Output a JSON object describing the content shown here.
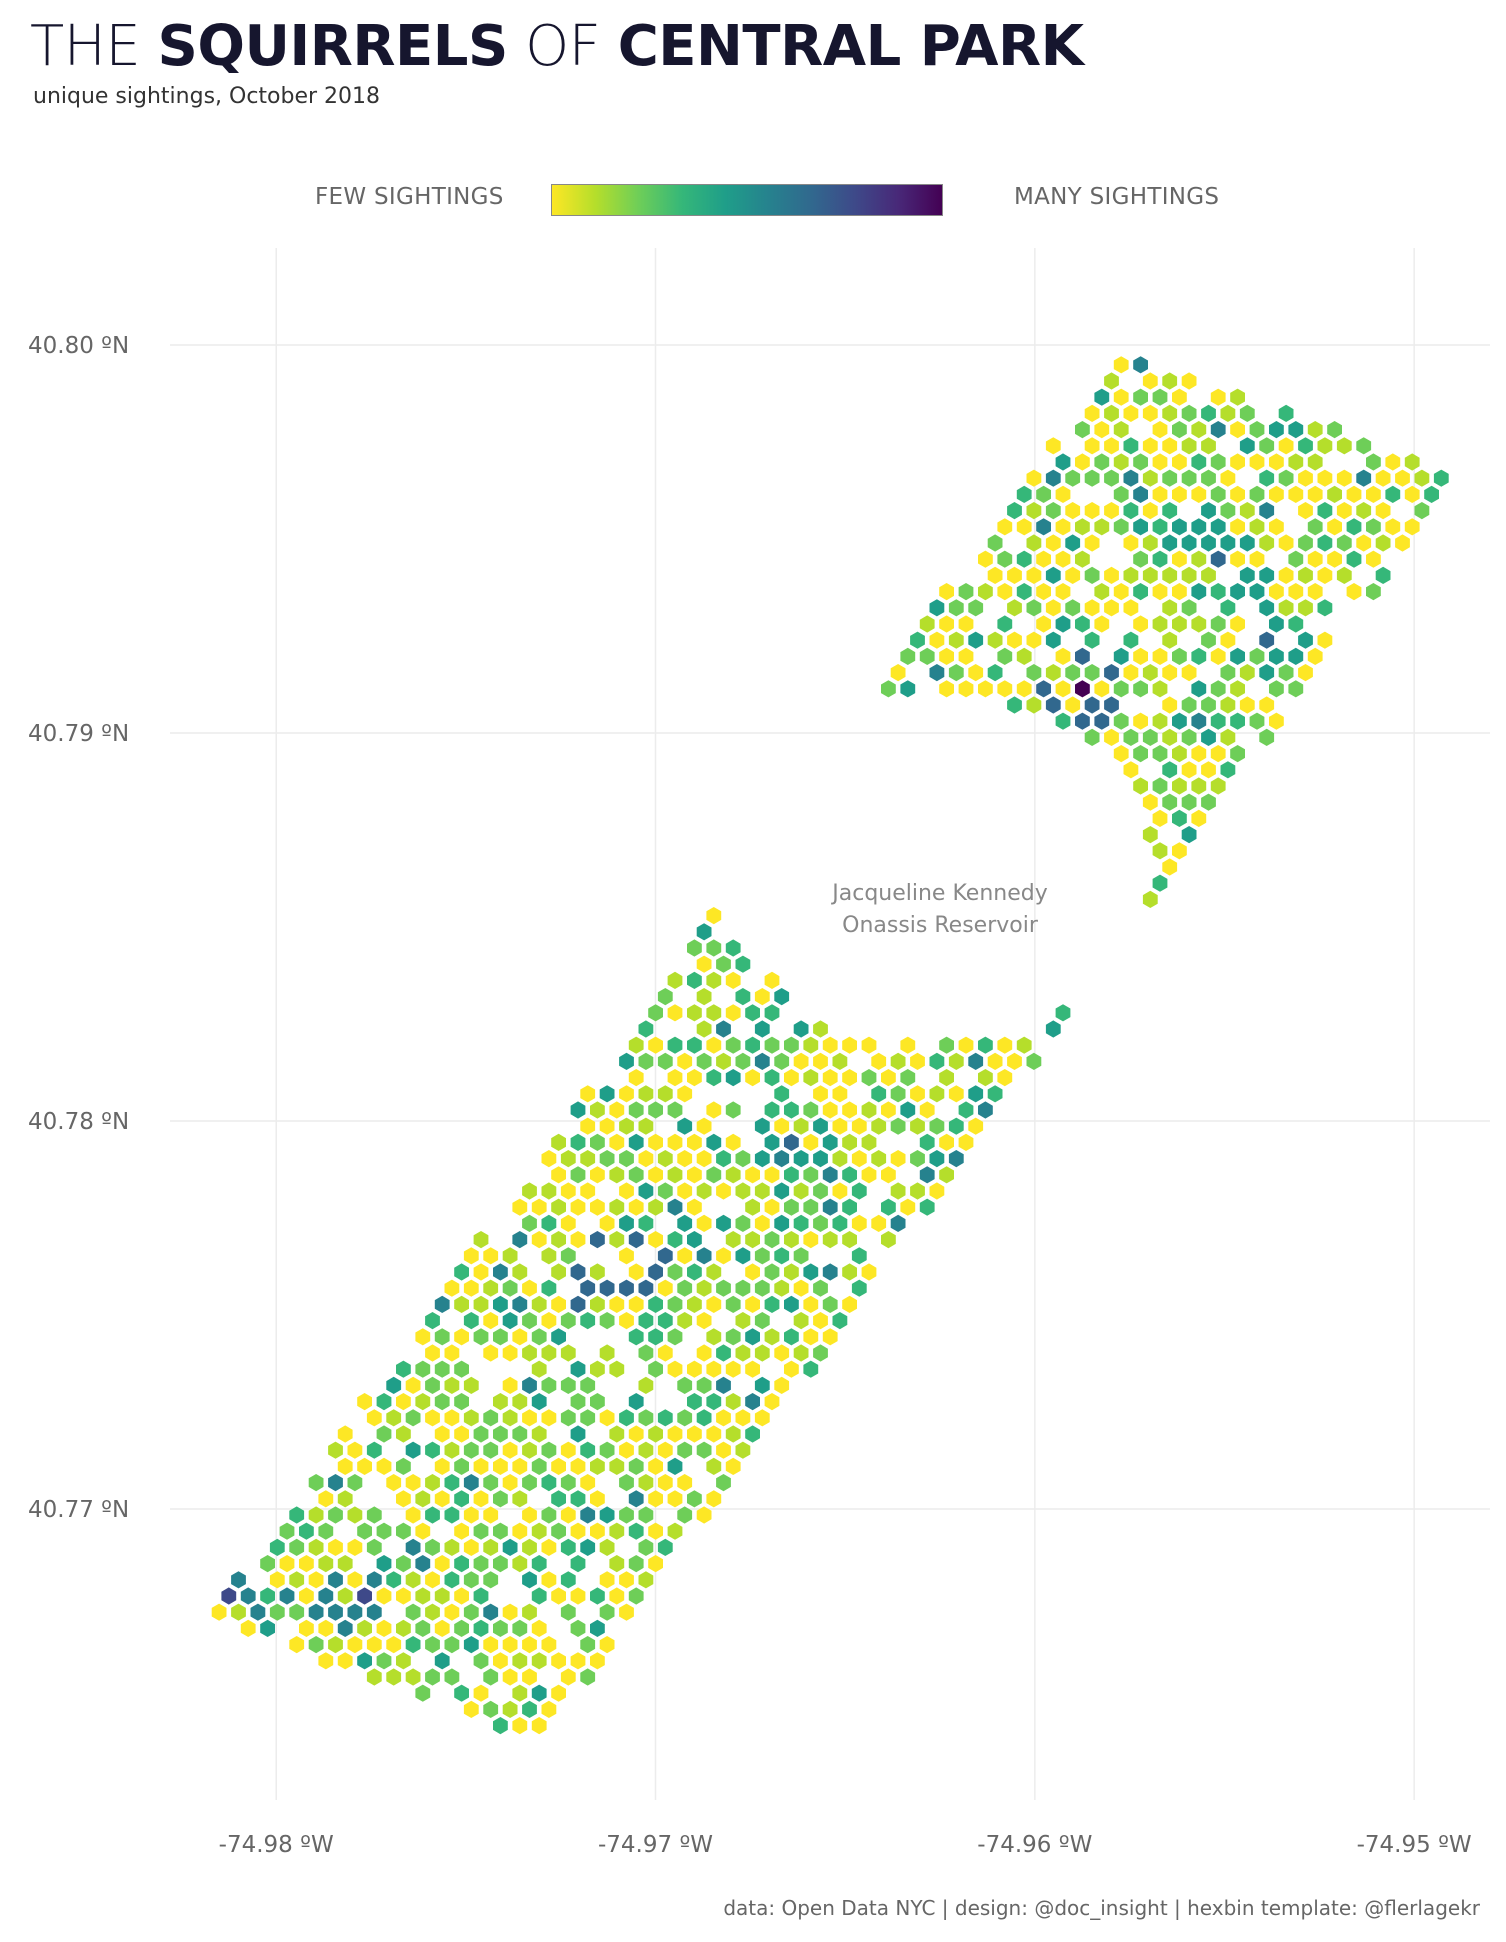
{
  "title": {
    "prefix": "THE",
    "word1": "SQUIRRELS",
    "middle": "OF",
    "word2": "CENTRAL PARK"
  },
  "subtitle": "unique sightings, October 2018",
  "legend": {
    "low_label": "FEW SIGHTINGS",
    "high_label": "MANY SIGHTINGS",
    "colors": [
      "#fde725",
      "#b5de2b",
      "#6ece58",
      "#35b779",
      "#1f9e89",
      "#26828e",
      "#31688e",
      "#3e4989",
      "#482878",
      "#440154"
    ]
  },
  "caption": "data: Open Data NYC | design: @doc_insight | hexbin template: @flerlagekr",
  "chart_data": {
    "type": "heatmap",
    "subtype": "hexbin map",
    "title": "THE SQUIRRELS OF CENTRAL PARK",
    "subtitle": "unique sightings, October 2018",
    "xlabel": "",
    "ylabel": "",
    "x_ticks": [
      -74.98,
      -74.97,
      -74.96,
      -74.95
    ],
    "x_tick_labels": [
      "-74.98 ºW",
      "-74.97 ºW",
      "-74.96 ºW",
      "-74.95 ºW"
    ],
    "y_ticks": [
      40.77,
      40.78,
      40.79,
      40.8
    ],
    "y_tick_labels": [
      "40.77 ºN",
      "40.78 ºN",
      "40.79 ºN",
      "40.80 ºN"
    ],
    "xlim": [
      -74.9828,
      -74.948
    ],
    "ylim": [
      40.7625,
      40.8025
    ],
    "grid": true,
    "annotation": {
      "text": [
        "Jacqueline Kennedy",
        "Onassis Reservoir"
      ],
      "x": -74.9625,
      "y": 40.7857
    },
    "park_outline": [
      [
        -74.9818,
        40.7672
      ],
      [
        -74.973,
        40.764
      ],
      [
        -74.9488,
        40.7967
      ],
      [
        -74.9578,
        40.7998
      ]
    ],
    "reservoir": {
      "center": [
        -74.9625,
        40.7865
      ],
      "radius_x": 0.0056,
      "radius_y": 0.0045
    },
    "value_scale": [
      1,
      10
    ],
    "intensity_sample": [
      {
        "x": -74.9718,
        "y": 40.776,
        "v": 10
      },
      {
        "x": -74.9703,
        "y": 40.776,
        "v": 9
      },
      {
        "x": -74.9588,
        "y": 40.7911,
        "v": 10
      },
      {
        "x": -74.9664,
        "y": 40.7794,
        "v": 7
      },
      {
        "x": -74.9812,
        "y": 40.7679,
        "v": 8
      },
      {
        "x": -74.9778,
        "y": 40.7679,
        "v": 8
      },
      {
        "x": -74.9537,
        "y": 40.7924,
        "v": 7
      },
      {
        "x": -74.9553,
        "y": 40.7944,
        "v": 7
      }
    ]
  }
}
